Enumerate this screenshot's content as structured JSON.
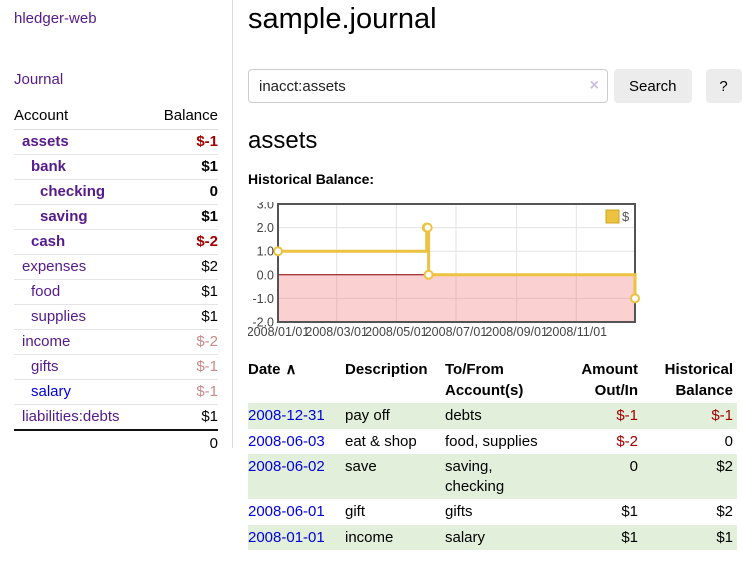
{
  "app": {
    "title": "hledger-web"
  },
  "nav": {
    "journal": "Journal"
  },
  "sidebar": {
    "header": {
      "account": "Account",
      "balance": "Balance"
    },
    "accounts": [
      {
        "name": "assets",
        "balance": "$-1",
        "level": 1,
        "emph": true,
        "name_color": "purple",
        "balance_style": "neg-bold"
      },
      {
        "name": "bank",
        "balance": "$1",
        "level": 2,
        "emph": true,
        "name_color": "purple",
        "balance_style": "bold"
      },
      {
        "name": "checking",
        "balance": "0",
        "level": 3,
        "emph": true,
        "name_color": "purple",
        "balance_style": "bold"
      },
      {
        "name": "saving",
        "balance": "$1",
        "level": 3,
        "emph": true,
        "name_color": "purple",
        "balance_style": "bold"
      },
      {
        "name": "cash",
        "balance": "$-2",
        "level": 2,
        "emph": true,
        "name_color": "purple",
        "balance_style": "neg-bold"
      },
      {
        "name": "expenses",
        "balance": "$2",
        "level": 1,
        "emph": false,
        "name_color": "purple",
        "balance_style": "plain"
      },
      {
        "name": "food",
        "balance": "$1",
        "level": 2,
        "emph": false,
        "name_color": "purple",
        "balance_style": "plain"
      },
      {
        "name": "supplies",
        "balance": "$1",
        "level": 2,
        "emph": false,
        "name_color": "purple",
        "balance_style": "plain"
      },
      {
        "name": "income",
        "balance": "$-2",
        "level": 1,
        "emph": false,
        "name_color": "purple",
        "balance_style": "neg-soft"
      },
      {
        "name": "gifts",
        "balance": "$-1",
        "level": 2,
        "emph": false,
        "name_color": "purple",
        "balance_style": "neg-soft"
      },
      {
        "name": "salary",
        "balance": "$-1",
        "level": 2,
        "emph": false,
        "name_color": "blue",
        "balance_style": "neg-soft"
      },
      {
        "name": "liabilities:debts",
        "balance": "$1",
        "level": 1,
        "emph": false,
        "name_color": "purple",
        "balance_style": "plain"
      }
    ],
    "total": "0"
  },
  "main": {
    "title": "sample.journal",
    "search": {
      "value": "inacct:assets",
      "clear_icon": "×",
      "search_button": "Search",
      "help_button": "?"
    },
    "account_heading": "assets",
    "chart_label": "Historical Balance:"
  },
  "chart_data": {
    "type": "line",
    "title": "Historical Balance",
    "step": true,
    "x_domain": [
      "2008-01-01",
      "2008-12-31"
    ],
    "ylim": [
      -2,
      3
    ],
    "y_ticks": [
      "3.0",
      "2.0",
      "1.0",
      "0.0",
      "-1.0",
      "-2.0"
    ],
    "x_tick_labels": [
      "2008/01/01",
      "2008/03/01",
      "2008/05/01",
      "2008/07/01",
      "2008/09/01",
      "2008/11/01"
    ],
    "x_tick_dates": [
      "2008-01-01",
      "2008-03-01",
      "2008-05-01",
      "2008-07-01",
      "2008-09-01",
      "2008-11-01"
    ],
    "series": [
      {
        "name": "$",
        "color": "#edc240",
        "points": [
          {
            "x": "2008-01-01",
            "y": 1
          },
          {
            "x": "2008-06-01",
            "y": 2
          },
          {
            "x": "2008-06-02",
            "y": 2
          },
          {
            "x": "2008-06-03",
            "y": 0
          },
          {
            "x": "2008-12-31",
            "y": -1
          }
        ]
      }
    ],
    "legend": {
      "position": "top-right",
      "label": "$"
    },
    "grid": true,
    "negative_region": true,
    "zero_line_color": "#8b0000",
    "negative_band_color": "#f9dada"
  },
  "register": {
    "headers": {
      "date": "Date",
      "sort_indicator": "∧",
      "description": "Description",
      "accounts": "To/From Account(s)",
      "amount": "Amount Out/In",
      "balance": "Historical Balance"
    },
    "rows": [
      {
        "date": "2008-12-31",
        "description": "pay off",
        "accounts": "debts",
        "amount": "$-1",
        "balance": "$-1",
        "amount_negative": true,
        "balance_negative": true
      },
      {
        "date": "2008-06-03",
        "description": "eat & shop",
        "accounts": "food, supplies",
        "amount": "$-2",
        "balance": "0",
        "amount_negative": true,
        "balance_negative": false
      },
      {
        "date": "2008-06-02",
        "description": "save",
        "accounts": "saving, checking",
        "amount": "0",
        "balance": "$2",
        "amount_negative": false,
        "balance_negative": false
      },
      {
        "date": "2008-06-01",
        "description": "gift",
        "accounts": "gifts",
        "amount": "$1",
        "balance": "$2",
        "amount_negative": false,
        "balance_negative": false
      },
      {
        "date": "2008-01-01",
        "description": "income",
        "accounts": "salary",
        "amount": "$1",
        "balance": "$1",
        "amount_negative": false,
        "balance_negative": false
      }
    ]
  },
  "colors": {
    "link_purple": "#551a8b",
    "link_blue": "#0000dd",
    "negative_strong": "#a40000",
    "negative_soft": "#c98989",
    "stripe_green": "#e2efdb",
    "series_gold": "#edc240"
  }
}
